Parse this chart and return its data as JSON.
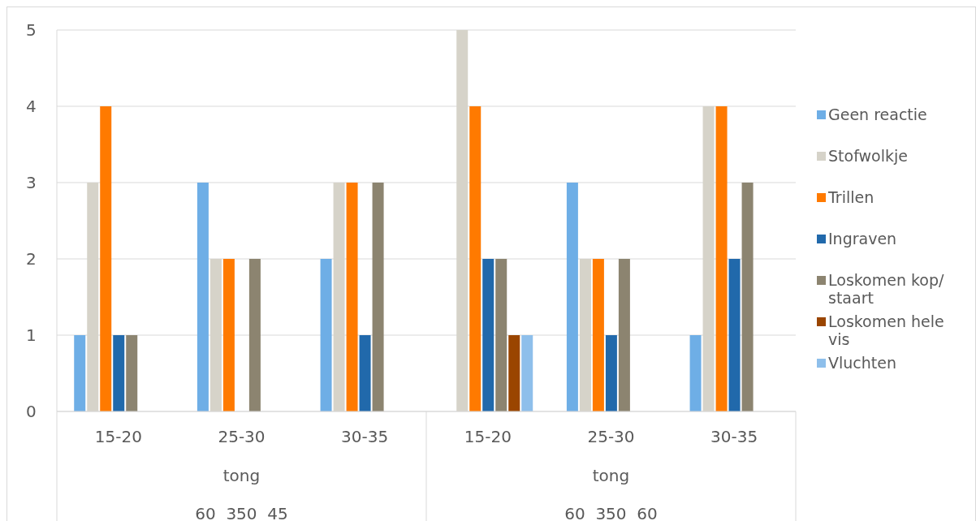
{
  "chart_data": {
    "type": "bar",
    "categories": [
      "15-20",
      "25-30",
      "30-35",
      "15-20",
      "25-30",
      "30-35"
    ],
    "series": [
      {
        "name": "Geen reactie",
        "color": "#6eaee6",
        "values": [
          1,
          3,
          2,
          0,
          3,
          1
        ]
      },
      {
        "name": "Stofwolkje",
        "color": "#d6d3c9",
        "values": [
          3,
          2,
          3,
          5,
          2,
          4
        ]
      },
      {
        "name": "Trillen",
        "color": "#ff7a00",
        "values": [
          4,
          2,
          3,
          4,
          2,
          4
        ]
      },
      {
        "name": "Ingraven",
        "color": "#2169ab",
        "values": [
          1,
          0,
          1,
          2,
          1,
          2
        ]
      },
      {
        "name": "Loskomen kop/ staart",
        "color": "#8c8470",
        "values": [
          1,
          2,
          3,
          2,
          2,
          3
        ]
      },
      {
        "name": "Loskomen hele vis",
        "color": "#9a4500",
        "values": [
          0,
          0,
          0,
          1,
          0,
          0
        ]
      },
      {
        "name": "Vluchten",
        "color": "#8ebfeb",
        "values": [
          0,
          0,
          0,
          1,
          0,
          0
        ]
      }
    ],
    "annotations": [
      "tong",
      "60  350  45",
      "tong",
      "60  350  60"
    ],
    "ylim": [
      0,
      5
    ],
    "yticks": [
      0,
      1,
      2,
      3,
      4,
      5
    ],
    "grid": "y",
    "legend": "right"
  }
}
